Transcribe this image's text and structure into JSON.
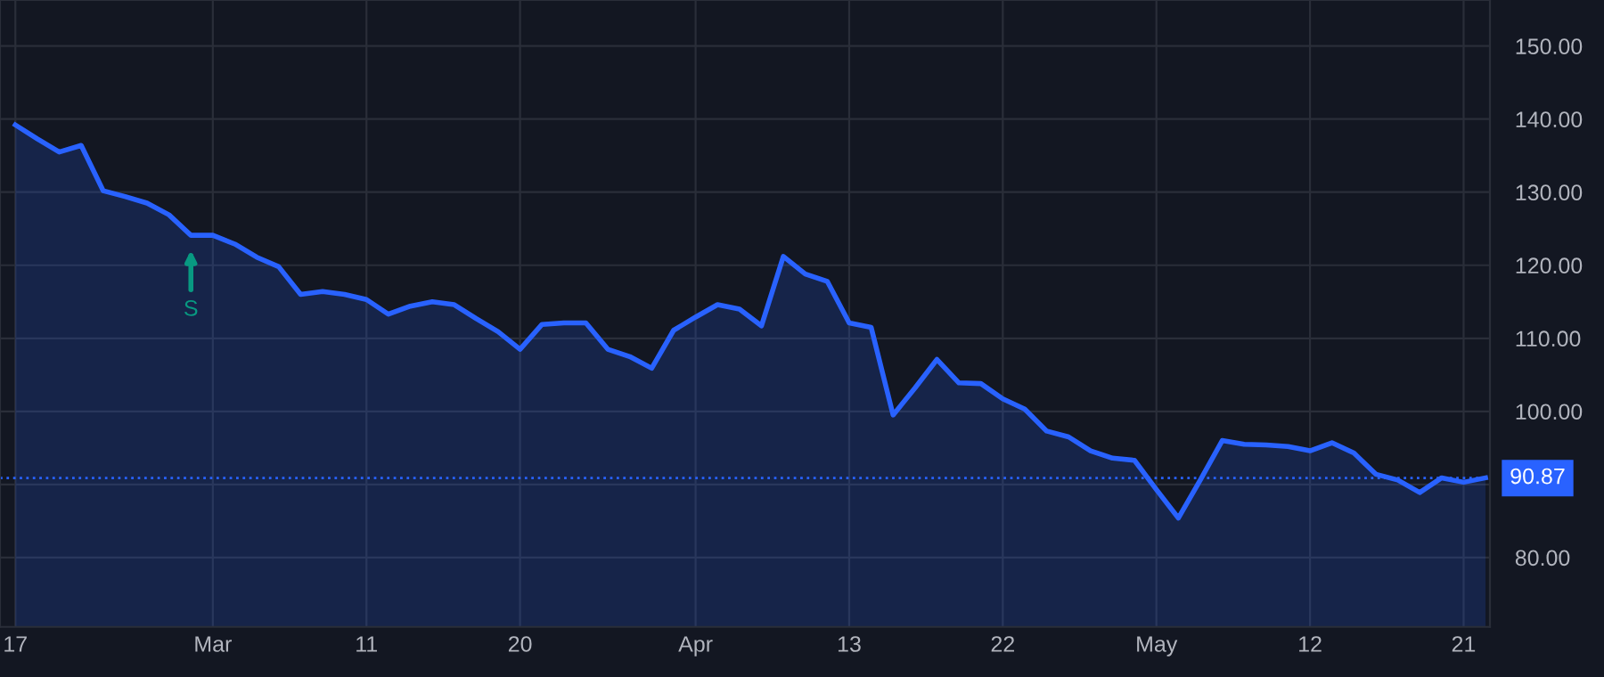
{
  "chart_data": {
    "type": "area",
    "categories": [
      "17",
      null,
      null,
      null,
      null,
      null,
      null,
      null,
      null,
      "Mar",
      null,
      null,
      null,
      null,
      null,
      null,
      "11",
      null,
      null,
      null,
      null,
      null,
      null,
      "20",
      null,
      null,
      null,
      null,
      null,
      null,
      null,
      "Apr",
      null,
      null,
      null,
      null,
      null,
      null,
      "13",
      null,
      null,
      null,
      null,
      null,
      null,
      "22",
      null,
      null,
      null,
      null,
      null,
      null,
      "May",
      null,
      null,
      null,
      null,
      null,
      null,
      "12",
      null,
      null,
      null,
      null,
      null,
      null,
      "21",
      null
    ],
    "series": [
      {
        "color": "#2962ff",
        "values": [
          139.2,
          137.3,
          135.5,
          136.4,
          130.2,
          129.4,
          128.5,
          126.9,
          124.1,
          124.1,
          122.9,
          121.1,
          119.8,
          116.0,
          116.4,
          116.0,
          115.3,
          113.3,
          114.4,
          115.0,
          114.6,
          112.7,
          110.9,
          108.5,
          111.9,
          112.1,
          112.1,
          108.5,
          107.5,
          105.9,
          111.1,
          112.9,
          114.6,
          114.0,
          111.7,
          121.2,
          118.8,
          117.8,
          112.1,
          111.5,
          99.5,
          103.2,
          107.1,
          103.9,
          103.8,
          101.7,
          100.3,
          97.3,
          96.5,
          94.6,
          93.6,
          93.3,
          89.3,
          85.4,
          90.6,
          96.0,
          95.5,
          95.4,
          95.2,
          94.6,
          95.7,
          94.3,
          91.4,
          90.6,
          88.9,
          90.9,
          90.3,
          90.9
        ]
      }
    ],
    "ylim": [
      70.5,
      156.3
    ],
    "yticks": [
      {
        "value": 80,
        "label": "80.00"
      },
      {
        "value": 90,
        "label": null
      },
      {
        "value": 100,
        "label": "100.00"
      },
      {
        "value": 110,
        "label": "110.00"
      },
      {
        "value": 120,
        "label": "120.00"
      },
      {
        "value": 130,
        "label": "130.00"
      },
      {
        "value": 140,
        "label": "140.00"
      },
      {
        "value": 150,
        "label": "150.00"
      }
    ],
    "ref_lines": [
      {
        "axis": "y",
        "value": 90.87,
        "label": "90.87",
        "color": "#2962ff",
        "line_style": "dotted"
      }
    ],
    "annotations": [
      {
        "text": "S",
        "y": 124.1
      }
    ],
    "grid": true,
    "legend": false
  }
}
